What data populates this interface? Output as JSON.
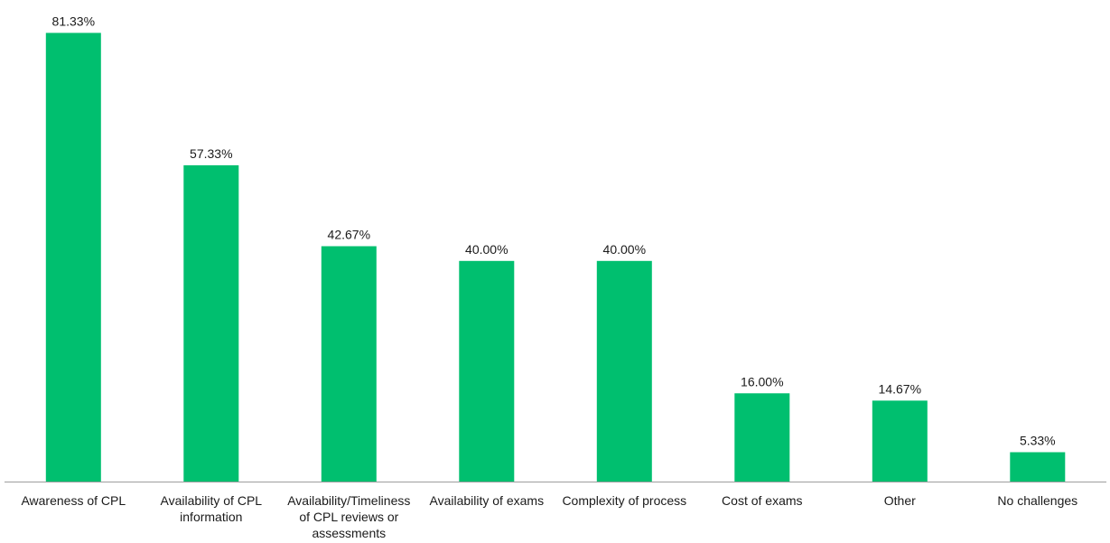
{
  "chart_data": {
    "type": "bar",
    "title": "",
    "xlabel": "",
    "ylabel": "",
    "ylim": [
      0,
      85
    ],
    "grid": false,
    "legend": "none",
    "bar_color": "#00bf6f",
    "axis_color": "#9e9e9e",
    "categories": [
      [
        "Awareness of CPL"
      ],
      [
        "Availability of CPL",
        "information"
      ],
      [
        "Availability/Timeliness",
        "of CPL reviews or",
        "assessments"
      ],
      [
        "Availability of exams"
      ],
      [
        "Complexity of process"
      ],
      [
        "Cost of exams"
      ],
      [
        "Other"
      ],
      [
        "No challenges"
      ]
    ],
    "values": [
      81.33,
      57.33,
      42.67,
      40.0,
      40.0,
      16.0,
      14.67,
      5.33
    ],
    "value_labels": [
      "81.33%",
      "57.33%",
      "42.67%",
      "40.00%",
      "40.00%",
      "16.00%",
      "14.67%",
      "5.33%"
    ]
  }
}
